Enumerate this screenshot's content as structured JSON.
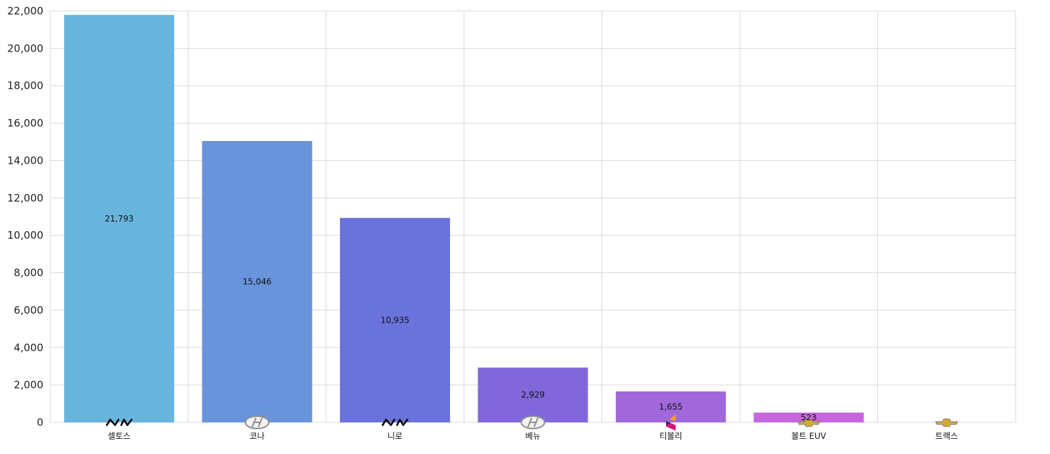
{
  "chart_data": {
    "type": "bar",
    "title": "",
    "xlabel": "",
    "ylabel": "",
    "ylim": [
      0,
      22000
    ],
    "yticks": [
      0,
      2000,
      4000,
      6000,
      8000,
      10000,
      12000,
      14000,
      16000,
      18000,
      20000,
      22000
    ],
    "ytick_labels": [
      "0",
      "2,000",
      "4,000",
      "6,000",
      "8,000",
      "10,000",
      "12,000",
      "14,000",
      "16,000",
      "18,000",
      "20,000",
      "22,000"
    ],
    "grid": true,
    "legend": "none",
    "categories": [
      "셀토스",
      "코나",
      "니로",
      "베뉴",
      "티볼리",
      "볼트 EUV",
      "트랙스"
    ],
    "values": [
      21793,
      15046,
      10935,
      2929,
      1655,
      523,
      0
    ],
    "value_labels": [
      "21,793",
      "15,046",
      "10,935",
      "2,929",
      "1,655",
      "523",
      ""
    ],
    "brand_icons": [
      "kia-logo-icon",
      "hyundai-logo-icon",
      "kia-logo-icon",
      "hyundai-logo-icon",
      "kgm-logo-icon",
      "chevrolet-logo-icon",
      "chevrolet-logo-icon"
    ],
    "colors": [
      "#67B5DC",
      "#6894DC",
      "#6A72DB",
      "#8167DB",
      "#A168DB",
      "#C667DD",
      "#D066DD"
    ],
    "grid_color": "#D8D8D8"
  }
}
